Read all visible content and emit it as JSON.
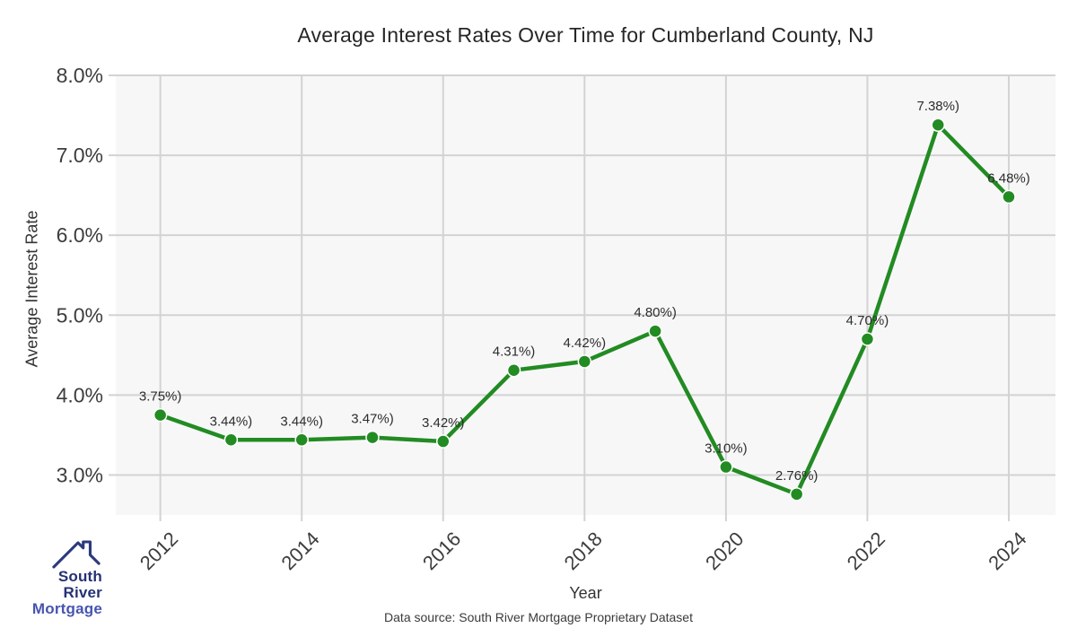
{
  "footer": {
    "source_note": "Data source: South River Mortgage Proprietary Dataset"
  },
  "logo": {
    "line1": "South River",
    "line2": "Mortgage",
    "icon": "house-roof-icon",
    "color_primary": "#243273",
    "color_secondary": "#4755b0",
    "roof_color": "#2c3a7c"
  },
  "chart_data": {
    "type": "line",
    "title": "Average Interest Rates Over Time for Cumberland County, NJ",
    "xlabel": "Year",
    "ylabel": "Average Interest Rate",
    "x": [
      2012,
      2013,
      2014,
      2015,
      2016,
      2017,
      2018,
      2019,
      2020,
      2021,
      2022,
      2023,
      2024
    ],
    "values": [
      3.75,
      3.44,
      3.44,
      3.47,
      3.42,
      4.31,
      4.42,
      4.8,
      3.1,
      2.76,
      4.7,
      7.38,
      6.48
    ],
    "point_labels": [
      "3.75%)",
      "3.44%)",
      "3.44%)",
      "3.47%)",
      "3.42%)",
      "4.31%)",
      "4.42%)",
      "4.80%)",
      "3.10%)",
      "2.76%)",
      "4.70%)",
      "7.38%)",
      "6.48%)"
    ],
    "x_tick_values": [
      2012,
      2014,
      2016,
      2018,
      2020,
      2022,
      2024
    ],
    "x_tick_labels": [
      "2012",
      "2014",
      "2016",
      "2018",
      "2020",
      "2022",
      "2024"
    ],
    "y_tick_values": [
      3,
      4,
      5,
      6,
      7,
      8
    ],
    "y_tick_labels": [
      "3.0%",
      "4.0%",
      "5.0%",
      "6.0%",
      "7.0%",
      "8.0%"
    ],
    "xlim": [
      2011.37,
      2024.66
    ],
    "ylim": [
      2.5,
      8.0
    ],
    "grid": true,
    "legend": null,
    "colors": {
      "line": "#228B22",
      "marker": "#228B22",
      "marker_edge": "#ffffff",
      "grid": "#d3d3d3",
      "plot_bg": "#f7f7f8",
      "tick_text": "#3d3d3d",
      "label_text": "#2d2d2d"
    }
  }
}
